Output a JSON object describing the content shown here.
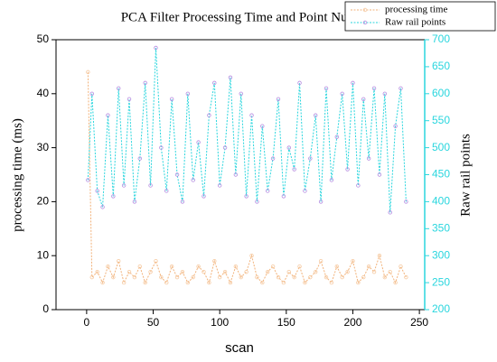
{
  "chart_data": {
    "type": "line",
    "title": "PCA  Filter Processing Time and Point Num",
    "xlabel": "scan",
    "ylabel": "processing time (ms)",
    "y2label": "Raw rail points",
    "x": [
      1,
      4,
      8,
      12,
      16,
      20,
      24,
      28,
      32,
      36,
      40,
      44,
      48,
      52,
      56,
      60,
      64,
      68,
      72,
      76,
      80,
      84,
      88,
      92,
      96,
      100,
      104,
      108,
      112,
      116,
      120,
      124,
      128,
      132,
      136,
      140,
      144,
      148,
      152,
      156,
      160,
      164,
      168,
      172,
      176,
      180,
      184,
      188,
      192,
      196,
      200,
      204,
      208,
      212,
      216,
      220,
      224,
      228,
      232,
      236,
      240
    ],
    "series": [
      {
        "name": "processing time",
        "color": "#f2b27a",
        "marker_color": "#f5c9a0",
        "values": [
          44,
          6,
          7,
          5,
          8,
          6,
          9,
          5,
          7,
          6,
          8,
          5,
          7,
          9,
          6,
          5,
          8,
          6,
          7,
          5,
          6,
          8,
          7,
          5,
          9,
          6,
          7,
          5,
          8,
          6,
          7,
          10,
          6,
          5,
          7,
          8,
          6,
          5,
          7,
          6,
          8,
          5,
          6,
          7,
          9,
          6,
          5,
          8,
          6,
          7,
          9,
          5,
          6,
          8,
          7,
          10,
          6,
          7,
          5,
          8,
          6
        ]
      },
      {
        "name": "Raw rail points",
        "color": "#2ad6de",
        "marker_color": "#b48be0",
        "axis": "y2",
        "values": [
          440,
          600,
          420,
          390,
          560,
          410,
          610,
          430,
          590,
          400,
          480,
          620,
          430,
          685,
          500,
          420,
          590,
          450,
          400,
          600,
          440,
          510,
          410,
          560,
          620,
          430,
          500,
          630,
          450,
          600,
          410,
          560,
          400,
          540,
          420,
          480,
          590,
          410,
          500,
          460,
          620,
          420,
          480,
          560,
          400,
          610,
          440,
          520,
          600,
          460,
          620,
          430,
          590,
          480,
          610,
          450,
          600,
          380,
          540,
          610,
          400
        ]
      }
    ],
    "xlim": [
      -23,
      254
    ],
    "xticks": [
      0,
      50,
      100,
      150,
      200,
      250
    ],
    "ylim": [
      0,
      50
    ],
    "yticks": [
      0,
      10,
      20,
      30,
      40,
      50
    ],
    "y2lim": [
      200,
      700
    ],
    "y2ticks": [
      200,
      250,
      300,
      350,
      400,
      450,
      500,
      550,
      600,
      650,
      700
    ],
    "y2color": "#2ad6de",
    "legend": "upper right"
  }
}
